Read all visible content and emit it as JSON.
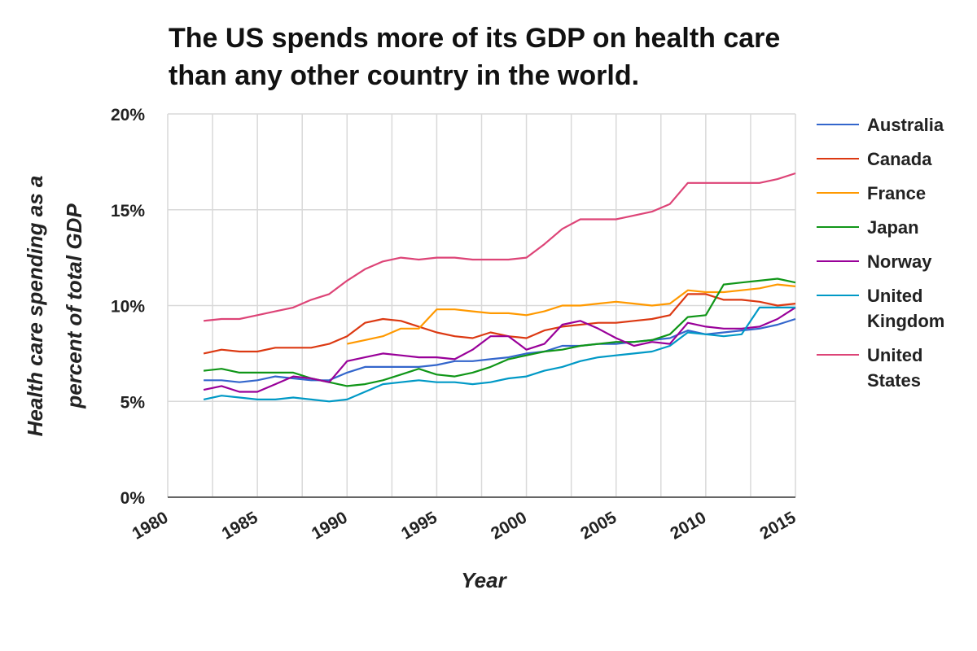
{
  "chart_data": {
    "type": "line",
    "title": "The US spends more of its GDP on health care than any other country in the world.",
    "xlabel": "Year",
    "ylabel": "Health care spending as a percent of total GDP",
    "xlim": [
      1980,
      2015
    ],
    "ylim": [
      0,
      20
    ],
    "x_ticks": [
      "1980",
      "1985",
      "1990",
      "1995",
      "2000",
      "2005",
      "2010",
      "2015"
    ],
    "y_ticks": [
      "0%",
      "5%",
      "10%",
      "15%",
      "20%"
    ],
    "grid": true,
    "legend_position": "right",
    "x": [
      1982,
      1983,
      1984,
      1985,
      1986,
      1987,
      1988,
      1989,
      1990,
      1991,
      1992,
      1993,
      1994,
      1995,
      1996,
      1997,
      1998,
      1999,
      2000,
      2001,
      2002,
      2003,
      2004,
      2005,
      2006,
      2007,
      2008,
      2009,
      2010,
      2011,
      2012,
      2013,
      2014,
      2015
    ],
    "series": [
      {
        "name": "Australia",
        "color": "#3366cc",
        "start_year": 1982,
        "values": [
          6.1,
          6.1,
          6.0,
          6.1,
          6.3,
          6.2,
          6.1,
          6.1,
          6.5,
          6.8,
          6.8,
          6.8,
          6.8,
          6.9,
          7.1,
          7.1,
          7.2,
          7.3,
          7.5,
          7.6,
          7.9,
          7.9,
          8.0,
          8.0,
          8.1,
          8.2,
          8.3,
          8.7,
          8.5,
          8.6,
          8.7,
          8.8,
          9.0,
          9.3
        ]
      },
      {
        "name": "Canada",
        "color": "#dc3912",
        "start_year": 1982,
        "values": [
          7.5,
          7.7,
          7.6,
          7.6,
          7.8,
          7.8,
          7.8,
          8.0,
          8.4,
          9.1,
          9.3,
          9.2,
          8.9,
          8.6,
          8.4,
          8.3,
          8.6,
          8.4,
          8.3,
          8.7,
          8.9,
          9.0,
          9.1,
          9.1,
          9.2,
          9.3,
          9.5,
          10.6,
          10.6,
          10.3,
          10.3,
          10.2,
          10.0,
          10.1
        ]
      },
      {
        "name": "France",
        "color": "#ff9900",
        "start_year": 1990,
        "values": [
          8.0,
          8.2,
          8.4,
          8.8,
          8.8,
          9.8,
          9.8,
          9.7,
          9.6,
          9.6,
          9.5,
          9.7,
          10.0,
          10.0,
          10.1,
          10.2,
          10.1,
          10.0,
          10.1,
          10.8,
          10.7,
          10.7,
          10.8,
          10.9,
          11.1,
          11.0
        ]
      },
      {
        "name": "Japan",
        "color": "#109618",
        "start_year": 1982,
        "values": [
          6.6,
          6.7,
          6.5,
          6.5,
          6.5,
          6.5,
          6.2,
          6.0,
          5.8,
          5.9,
          6.1,
          6.4,
          6.7,
          6.4,
          6.3,
          6.5,
          6.8,
          7.2,
          7.4,
          7.6,
          7.7,
          7.9,
          8.0,
          8.1,
          8.1,
          8.2,
          8.5,
          9.4,
          9.5,
          11.1,
          11.2,
          11.3,
          11.4,
          11.2
        ]
      },
      {
        "name": "Norway",
        "color": "#990099",
        "start_year": 1982,
        "values": [
          5.6,
          5.8,
          5.5,
          5.5,
          5.9,
          6.3,
          6.2,
          6.0,
          7.1,
          7.3,
          7.5,
          7.4,
          7.3,
          7.3,
          7.2,
          7.7,
          8.4,
          8.4,
          7.7,
          8.0,
          9.0,
          9.2,
          8.8,
          8.3,
          7.9,
          8.1,
          8.0,
          9.1,
          8.9,
          8.8,
          8.8,
          8.9,
          9.3,
          9.9
        ]
      },
      {
        "name": "United Kingdom",
        "color": "#0099c6",
        "start_year": 1982,
        "values": [
          5.1,
          5.3,
          5.2,
          5.1,
          5.1,
          5.2,
          5.1,
          5.0,
          5.1,
          5.5,
          5.9,
          6.0,
          6.1,
          6.0,
          6.0,
          5.9,
          6.0,
          6.2,
          6.3,
          6.6,
          6.8,
          7.1,
          7.3,
          7.4,
          7.5,
          7.6,
          7.9,
          8.6,
          8.5,
          8.4,
          8.5,
          9.9,
          9.9,
          9.9
        ]
      },
      {
        "name": "United States",
        "color": "#dd4477",
        "start_year": 1982,
        "values": [
          9.2,
          9.3,
          9.3,
          9.5,
          9.7,
          9.9,
          10.3,
          10.6,
          11.3,
          11.9,
          12.3,
          12.5,
          12.4,
          12.5,
          12.5,
          12.4,
          12.4,
          12.4,
          12.5,
          13.2,
          14.0,
          14.5,
          14.5,
          14.5,
          14.7,
          14.9,
          15.3,
          16.4,
          16.4,
          16.4,
          16.4,
          16.4,
          16.6,
          16.9
        ]
      }
    ]
  }
}
